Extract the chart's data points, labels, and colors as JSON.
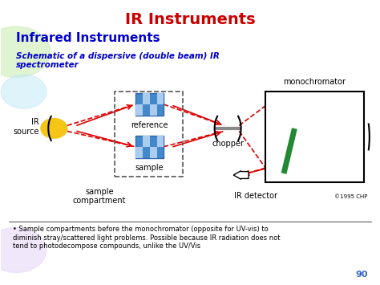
{
  "title": "IR Instruments",
  "title_color": "#cc0000",
  "subtitle": "Infrared Instruments",
  "subtitle_color": "#0000cc",
  "subtitle2": "Schematic of a dispersive (double beam) IR\nspectrometer",
  "subtitle2_color": "#0000cc",
  "bg_color": "#ffffff",
  "footnote": "• Sample compartments before the monochromator (opposite for UV-vis) to\ndiminish stray/scattered light problems. Possible because IR radiation does not\ntend to photodecompose compounds, unlike the UV/Vis",
  "page_num": "90",
  "labels": {
    "ir_source": "IR\nsource",
    "sample_compartment": "sample\ncompartment",
    "reference": "reference",
    "sample": "sample",
    "chopper": "chopper",
    "ir_detector": "IR detector",
    "monochromator": "monochromator",
    "copyright": "©1995 CHP"
  },
  "colors": {
    "beam": "#dd0000",
    "source_yellow": "#f5c518",
    "blue_cell": "#4488cc",
    "blue_cell_light": "#aaccee",
    "grating_green": "#228833",
    "chopper_gray": "#888888",
    "dashed_box": "#555555"
  }
}
